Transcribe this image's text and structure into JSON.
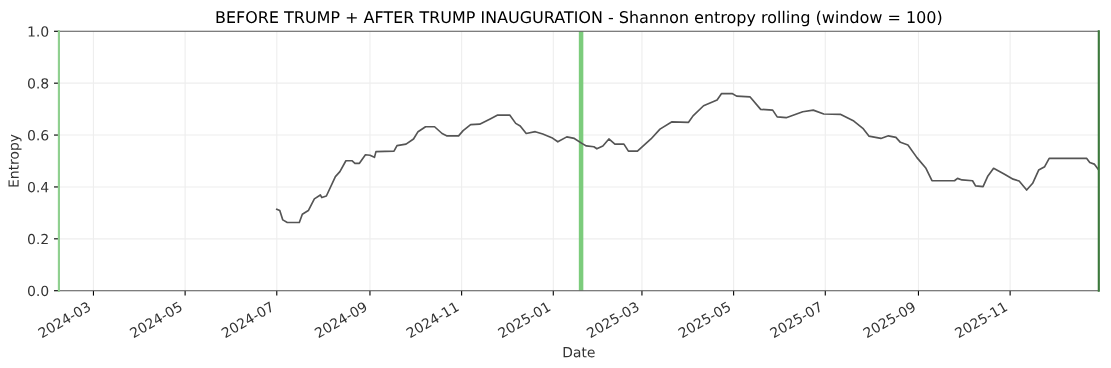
{
  "chart_data": {
    "type": "line",
    "title": "BEFORE TRUMP + AFTER TRUMP INAUGURATION - Shannon entropy rolling (window = 100)",
    "xlabel": "Date",
    "ylabel": "Entropy",
    "series": [
      {
        "color": "#555555",
        "x": [
          "2024-07-01",
          "2024-07-03",
          "2024-07-05",
          "2024-07-08",
          "2024-07-16",
          "2024-07-18",
          "2024-07-22",
          "2024-07-26",
          "2024-07-30",
          "2024-07-31",
          "2024-08-03",
          "2024-08-09",
          "2024-08-12",
          "2024-08-16",
          "2024-08-20",
          "2024-08-22",
          "2024-08-25",
          "2024-08-29",
          "2024-09-01",
          "2024-09-04",
          "2024-09-05",
          "2024-09-17",
          "2024-09-19",
          "2024-09-25",
          "2024-09-30",
          "2024-10-03",
          "2024-10-08",
          "2024-10-14",
          "2024-10-19",
          "2024-10-22",
          "2024-10-30",
          "2024-11-02",
          "2024-11-07",
          "2024-11-13",
          "2024-11-20",
          "2024-11-25",
          "2024-12-03",
          "2024-12-07",
          "2024-12-10",
          "2024-12-14",
          "2024-12-20",
          "2024-12-25",
          "2024-12-31",
          "2025-01-04",
          "2025-01-10",
          "2025-01-15",
          "2025-01-20",
          "2025-01-23",
          "2025-01-28",
          "2025-01-30",
          "2025-02-03",
          "2025-02-07",
          "2025-02-11",
          "2025-02-17",
          "2025-02-20",
          "2025-02-26",
          "2025-03-07",
          "2025-03-13",
          "2025-03-21",
          "2025-04-01",
          "2025-04-04",
          "2025-04-11",
          "2025-04-20",
          "2025-04-23",
          "2025-04-30",
          "2025-05-03",
          "2025-05-12",
          "2025-05-19",
          "2025-05-27",
          "2025-05-30",
          "2025-06-05",
          "2025-06-16",
          "2025-06-23",
          "2025-06-30",
          "2025-07-11",
          "2025-07-20",
          "2025-07-26",
          "2025-07-30",
          "2025-08-07",
          "2025-08-12",
          "2025-08-17",
          "2025-08-20",
          "2025-08-25",
          "2025-08-31",
          "2025-09-06",
          "2025-09-10",
          "2025-09-25",
          "2025-09-27",
          "2025-09-30",
          "2025-10-07",
          "2025-10-09",
          "2025-10-14",
          "2025-10-17",
          "2025-10-21",
          "2025-10-28",
          "2025-11-03",
          "2025-11-07",
          "2025-11-12",
          "2025-11-16",
          "2025-11-20",
          "2025-11-24",
          "2025-11-27",
          "2025-12-22",
          "2025-12-24",
          "2025-12-27",
          "2025-12-30"
        ],
        "values": [
          0.314,
          0.309,
          0.273,
          0.263,
          0.263,
          0.295,
          0.309,
          0.354,
          0.369,
          0.359,
          0.365,
          0.44,
          0.459,
          0.501,
          0.501,
          0.491,
          0.491,
          0.524,
          0.522,
          0.514,
          0.536,
          0.538,
          0.559,
          0.565,
          0.585,
          0.613,
          0.632,
          0.632,
          0.606,
          0.597,
          0.597,
          0.617,
          0.64,
          0.642,
          0.662,
          0.677,
          0.677,
          0.645,
          0.635,
          0.606,
          0.613,
          0.604,
          0.59,
          0.574,
          0.593,
          0.587,
          0.568,
          0.558,
          0.555,
          0.547,
          0.558,
          0.585,
          0.565,
          0.565,
          0.538,
          0.538,
          0.585,
          0.623,
          0.651,
          0.649,
          0.674,
          0.713,
          0.735,
          0.76,
          0.76,
          0.75,
          0.747,
          0.699,
          0.696,
          0.67,
          0.667,
          0.69,
          0.696,
          0.681,
          0.68,
          0.654,
          0.626,
          0.596,
          0.587,
          0.597,
          0.591,
          0.572,
          0.562,
          0.513,
          0.472,
          0.424,
          0.424,
          0.433,
          0.427,
          0.424,
          0.404,
          0.401,
          0.44,
          0.472,
          0.45,
          0.43,
          0.423,
          0.388,
          0.414,
          0.465,
          0.478,
          0.51,
          0.51,
          0.494,
          0.488,
          0.465
        ]
      }
    ],
    "xlim": [
      "2024-02-07",
      "2025-12-30"
    ],
    "xticks": [
      {
        "value": "2024-03-01",
        "label": "2024-03"
      },
      {
        "value": "2024-05-01",
        "label": "2024-05"
      },
      {
        "value": "2024-07-01",
        "label": "2024-07"
      },
      {
        "value": "2024-09-01",
        "label": "2024-09"
      },
      {
        "value": "2024-11-01",
        "label": "2024-11"
      },
      {
        "value": "2025-01-01",
        "label": "2025-01"
      },
      {
        "value": "2025-03-01",
        "label": "2025-03"
      },
      {
        "value": "2025-05-01",
        "label": "2025-05"
      },
      {
        "value": "2025-07-01",
        "label": "2025-07"
      },
      {
        "value": "2025-09-01",
        "label": "2025-09"
      },
      {
        "value": "2025-11-01",
        "label": "2025-11"
      }
    ],
    "ylim": [
      0,
      1
    ],
    "yticks": [
      {
        "value": 0,
        "label": "0.0"
      },
      {
        "value": 0.2,
        "label": "0.2"
      },
      {
        "value": 0.4,
        "label": "0.4"
      },
      {
        "value": 0.6,
        "label": "0.6"
      },
      {
        "value": 0.8,
        "label": "0.8"
      },
      {
        "value": 1,
        "label": "1.0"
      }
    ],
    "ref_lines": [
      {
        "axis": "x",
        "value": "2024-02-07",
        "color": "#8fd18f"
      },
      {
        "axis": "x",
        "value": "2025-12-30",
        "color": "#3c7a3c"
      }
    ],
    "bands": [
      {
        "axis": "x",
        "from": "2025-01-18",
        "to": "2025-01-21",
        "color": "#7ccc7c"
      }
    ],
    "grid": true,
    "marker": "none",
    "line_style": "solid"
  }
}
